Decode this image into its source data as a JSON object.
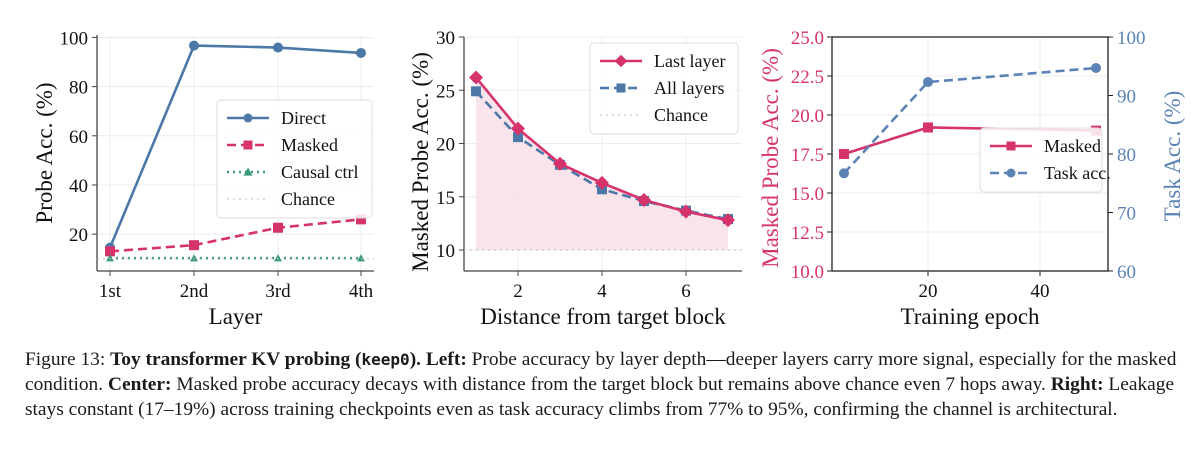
{
  "chart_data": [
    {
      "type": "line",
      "title": "",
      "xlabel": "Layer",
      "ylabel": "Probe Acc. (%)",
      "categories": [
        "1st",
        "2nd",
        "3rd",
        "4th"
      ],
      "yticks": [
        20,
        40,
        60,
        80,
        100
      ],
      "ylim": [
        5,
        101
      ],
      "grid": true,
      "legend_position": "center-right",
      "series": [
        {
          "name": "Direct",
          "values": [
            14.5,
            96.7,
            95.9,
            93.7
          ],
          "color": "#4c78a8",
          "style": "solid",
          "marker": "circle"
        },
        {
          "name": "Masked",
          "values": [
            13.0,
            15.5,
            22.6,
            26.0
          ],
          "color": "#d6336c",
          "style": "dashed",
          "marker": "square"
        },
        {
          "name": "Causal ctrl",
          "values": [
            10.2,
            10.2,
            10.2,
            10.2
          ],
          "color": "#3a9a7a",
          "style": "dotted",
          "marker": "triangle"
        },
        {
          "name": "Chance",
          "values": [
            10,
            10,
            10,
            10
          ],
          "color": "#bbbbbb",
          "style": "dotted",
          "marker": "none"
        }
      ]
    },
    {
      "type": "line",
      "title": "",
      "xlabel": "Distance from target block",
      "ylabel": "Masked Probe Acc. (%)",
      "x": [
        1,
        2,
        3,
        4,
        5,
        6,
        7
      ],
      "xticks": [
        2,
        4,
        6
      ],
      "xlim": [
        0.6,
        7.35
      ],
      "yticks": [
        10,
        15,
        20,
        25,
        30
      ],
      "ylim": [
        8,
        30
      ],
      "grid": true,
      "legend_position": "top-right",
      "series": [
        {
          "name": "Last layer",
          "values": [
            26.2,
            21.4,
            18.1,
            16.3,
            14.7,
            13.6,
            12.8
          ],
          "color": "#d6336c",
          "style": "solid",
          "marker": "diamond",
          "fill_to_chance": true
        },
        {
          "name": "All layers",
          "values": [
            24.9,
            20.6,
            18.0,
            15.7,
            14.6,
            13.7,
            12.9
          ],
          "color": "#4c78a8",
          "style": "dashed",
          "marker": "square"
        },
        {
          "name": "Chance",
          "values": [
            10,
            10,
            10,
            10,
            10,
            10,
            10
          ],
          "color": "#bbbbbb",
          "style": "dotted",
          "marker": "none"
        }
      ]
    },
    {
      "type": "line",
      "title": "",
      "xlabel": "Training epoch",
      "ylabel": "Masked Probe Acc. (%)",
      "ylabel_right": "Task Acc. (%)",
      "x": [
        5,
        20,
        50
      ],
      "xticks": [
        20,
        40
      ],
      "xlim": [
        0,
        52
      ],
      "yticks": [
        "10.0",
        "12.5",
        "15.0",
        "17.5",
        "20.0",
        "22.5",
        "25.0"
      ],
      "ylim": [
        10,
        25
      ],
      "yticks_right": [
        "60",
        "70",
        "80",
        "90",
        "100"
      ],
      "ylim_right": [
        60,
        100
      ],
      "grid": true,
      "legend_position": "center-right",
      "series": [
        {
          "name": "Masked",
          "axis": "left",
          "values": [
            17.5,
            19.2,
            19.0
          ],
          "color": "#d6336c",
          "style": "solid",
          "marker": "square"
        },
        {
          "name": "Task acc.",
          "axis": "right",
          "values": [
            76.7,
            92.3,
            94.7
          ],
          "color": "#4c78a8",
          "style": "dashed",
          "marker": "circle"
        }
      ]
    }
  ],
  "caption": {
    "label": "Figure 13:",
    "title_bold": "Toy transformer KV probing (",
    "title_code": "keep0",
    "title_end": ").",
    "left_label": "Left:",
    "left_text": "Probe accuracy by layer depth—deeper layers carry more signal, especially for the masked condition.",
    "center_label": "Center:",
    "center_text": "Masked probe accuracy decays with distance from the target block but remains above chance even 7 hops away.",
    "right_label": "Right:",
    "right_text": "Leakage stays constant (17–19%) across training checkpoints even as task accuracy climbs from 77% to 95%, confirming the channel is architectural."
  }
}
